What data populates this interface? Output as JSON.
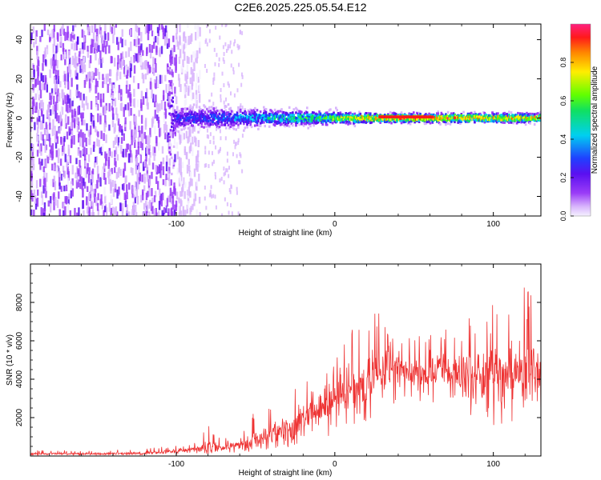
{
  "title": "C2E6.2025.225.05.54.E12",
  "colors": {
    "snr_line": "#ee3333",
    "colormap": [
      "#f5f0ff",
      "#d8b4fc",
      "#9a3cf7",
      "#5a10f0",
      "#2040ff",
      "#00d0f0",
      "#10e060",
      "#60ff00",
      "#ffee00",
      "#ff8800",
      "#ff1a1a",
      "#ff2080"
    ]
  },
  "chart_data": [
    {
      "type": "heatmap",
      "title": "C2E6.2025.225.05.54.E12",
      "xlabel": "Height of straight line (km)",
      "ylabel": "Frequency (Hz)",
      "xlim": [
        -192,
        130
      ],
      "ylim": [
        -50,
        48
      ],
      "x_ticks": [
        -100,
        0,
        100
      ],
      "x_tick_labels": [
        "-100",
        "0",
        "100"
      ],
      "y_ticks": [
        -40,
        -20,
        0,
        20,
        40
      ],
      "y_tick_labels": [
        "-40",
        "-20",
        "0",
        "20",
        "40"
      ],
      "colorbar": {
        "label": "Normalized spectral amplitude",
        "range": [
          0.0,
          1.0
        ],
        "ticks": [
          0.0,
          0.2,
          0.4,
          0.6,
          0.8
        ],
        "tick_labels": [
          "0.0",
          "0.2",
          "0.4",
          "0.6",
          "0.8"
        ]
      },
      "description_points": [
        {
          "height_km": -190,
          "noise_spread_hz": 48,
          "center_amplitude": 0.2
        },
        {
          "height_km": -105,
          "noise_spread_hz": 48,
          "center_amplitude": 0.3
        },
        {
          "height_km": -100,
          "noise_spread_hz": 8,
          "center_amplitude": 0.35
        },
        {
          "height_km": -60,
          "noise_spread_hz": 6,
          "center_amplitude": 0.45
        },
        {
          "height_km": 0,
          "noise_spread_hz": 4,
          "center_amplitude": 0.7
        },
        {
          "height_km": 30,
          "noise_spread_hz": 3,
          "center_amplitude": 0.95
        },
        {
          "height_km": 60,
          "noise_spread_hz": 3,
          "center_amplitude": 0.95
        },
        {
          "height_km": 128,
          "noise_spread_hz": 3,
          "center_amplitude": 0.85
        }
      ]
    },
    {
      "type": "line",
      "xlabel": "Height of straight line (km)",
      "ylabel": "SNR (10 * v/v)",
      "xlim": [
        -192,
        130
      ],
      "ylim": [
        0,
        10000
      ],
      "x_ticks": [
        -100,
        0,
        100
      ],
      "x_tick_labels": [
        "-100",
        "0",
        "100"
      ],
      "y_ticks": [
        2000,
        4000,
        6000,
        8000
      ],
      "y_tick_labels": [
        "2000",
        "4000",
        "6000",
        "8000"
      ],
      "envelope": {
        "x": [
          -192,
          -150,
          -120,
          -100,
          -90,
          -80,
          -70,
          -60,
          -50,
          -40,
          -30,
          -20,
          -10,
          0,
          10,
          20,
          25,
          30,
          40,
          50,
          60,
          70,
          80,
          90,
          100,
          110,
          120,
          130
        ],
        "y_min": [
          50,
          50,
          60,
          80,
          100,
          120,
          100,
          150,
          200,
          300,
          400,
          600,
          800,
          1200,
          1500,
          1800,
          2000,
          2300,
          2600,
          2800,
          2700,
          2500,
          2200,
          1800,
          1500,
          1500,
          1600,
          1800
        ],
        "y_max": [
          300,
          300,
          400,
          550,
          700,
          1600,
          900,
          1300,
          2500,
          2800,
          3300,
          4200,
          4500,
          5200,
          6800,
          7400,
          8300,
          6800,
          6300,
          6400,
          6900,
          7300,
          7000,
          7600,
          8600,
          8200,
          8900,
          8600
        ],
        "y_mean": [
          120,
          120,
          150,
          250,
          350,
          500,
          450,
          600,
          900,
          1200,
          1500,
          2000,
          2500,
          3000,
          3500,
          3900,
          4300,
          4400,
          4500,
          4400,
          4300,
          4300,
          4200,
          4100,
          4300,
          4400,
          4500,
          4500
        ]
      }
    }
  ]
}
